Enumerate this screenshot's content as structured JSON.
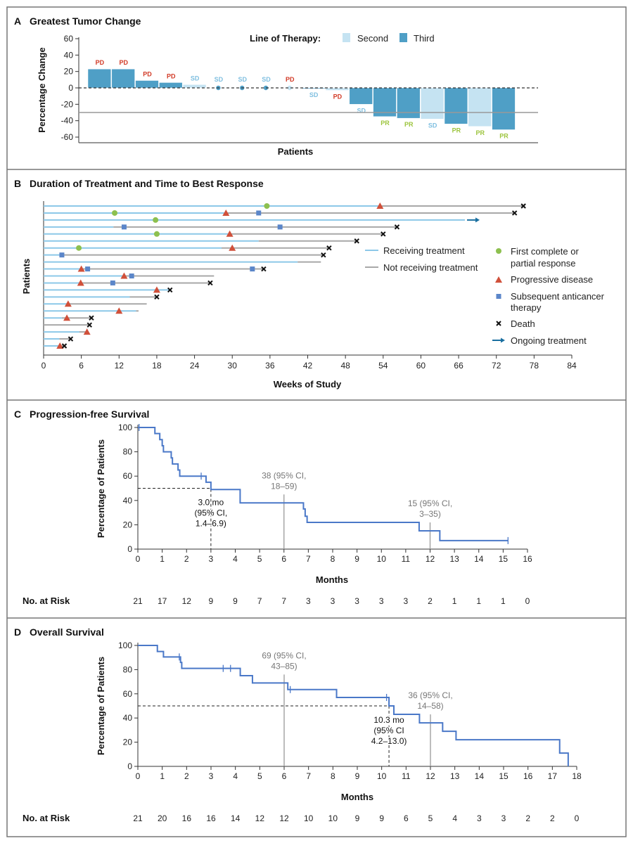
{
  "colors": {
    "third": "#4f9fc6",
    "second": "#c5e3f2",
    "pd": "#d23a26",
    "sd": "#7fbfe0",
    "pr": "#9cc43c",
    "receiving": "#8cc8e8",
    "not_receiving": "#a8a8a8",
    "response": "#8dc04f",
    "progression": "#d0503a",
    "subsequent": "#5b86c9",
    "death": "#111111",
    "ongoing": "#1a6fa0",
    "km": "#4a78c8",
    "ci_line": "#999999"
  },
  "chart_data": [
    {
      "panel": "A",
      "title": "Greatest Tumor Change",
      "type": "bar",
      "ylabel": "Percentage Change",
      "xlabel": "Patients",
      "ylim": [
        -60,
        60
      ],
      "yticks": [
        60,
        40,
        20,
        0,
        -20,
        -40,
        -60
      ],
      "reference_lines": [
        0,
        -30
      ],
      "legend_title": "Line of Therapy:",
      "legend": [
        {
          "name": "Second",
          "key": "second"
        },
        {
          "name": "Third",
          "key": "third"
        }
      ],
      "values": [
        23,
        23,
        9,
        6.5,
        4,
        0,
        0,
        0,
        0,
        -1,
        -3,
        -20,
        -35,
        -37,
        -38,
        -44,
        -47,
        -51
      ],
      "line_of_therapy": [
        "third",
        "third",
        "third",
        "third",
        "second",
        "third",
        "third",
        "third",
        "second",
        "third",
        "second",
        "third",
        "third",
        "third",
        "second",
        "third",
        "second",
        "third"
      ],
      "labels": [
        "PD",
        "PD",
        "PD",
        "PD",
        "SD",
        "SD",
        "SD",
        "SD",
        "PD",
        "SD",
        "PD",
        "SD",
        "PR",
        "PR",
        "SD",
        "PR",
        "PR",
        "PR"
      ]
    },
    {
      "panel": "B",
      "title": "Duration of Treatment and Time to Best Response",
      "type": "swimmer",
      "ylabel": "Patients",
      "xlabel": "Weeks of Study",
      "xlim": [
        0,
        84
      ],
      "xticks": [
        0,
        6,
        12,
        18,
        24,
        30,
        36,
        42,
        48,
        54,
        60,
        66,
        72,
        78,
        84
      ],
      "legend": {
        "receiving": "Receiving treatment",
        "not_receiving": "Not receiving treatment",
        "response": "First complete or partial response",
        "response_lines": [
          "First complete or",
          "partial response"
        ],
        "progression": "Progressive disease",
        "subsequent_lines": [
          "Subsequent anticancer",
          "therapy"
        ],
        "death": "Death",
        "ongoing": "Ongoing treatment"
      },
      "patients": [
        {
          "on_treatment": 53.5,
          "end": 76.3,
          "response": 35.5,
          "progression": 53.5,
          "subsequent": [],
          "death": true
        },
        {
          "on_treatment": 29,
          "end": 74.9,
          "response": 11.3,
          "progression": 29,
          "subsequent": [
            34.2
          ],
          "death": true
        },
        {
          "on_treatment": 67,
          "end": 67,
          "response": 17.8,
          "progression": null,
          "subsequent": [],
          "death": false,
          "ongoing": true
        },
        {
          "on_treatment": 11.1,
          "end": 56.2,
          "response": null,
          "progression": null,
          "subsequent": [
            12.8,
            37.6
          ],
          "death": true
        },
        {
          "on_treatment": 29.6,
          "end": 54,
          "response": 18,
          "progression": 29.6,
          "subsequent": [],
          "death": true
        },
        {
          "on_treatment": 34.2,
          "end": 49.8,
          "response": null,
          "progression": null,
          "subsequent": [],
          "death": true
        },
        {
          "on_treatment": 28.3,
          "end": 45.4,
          "response": 5.6,
          "progression": 30,
          "subsequent": [],
          "death": true
        },
        {
          "on_treatment": 2.9,
          "end": 44.5,
          "response": null,
          "progression": null,
          "subsequent": [
            2.9
          ],
          "death": true
        },
        {
          "on_treatment": 40.4,
          "end": 44.1,
          "response": null,
          "progression": null,
          "subsequent": [],
          "death": false
        },
        {
          "on_treatment": 6,
          "end": 35,
          "response": null,
          "progression": 6,
          "subsequent": [
            7,
            33.2
          ],
          "death": true
        },
        {
          "on_treatment": 12.8,
          "end": 27.1,
          "response": null,
          "progression": 12.8,
          "subsequent": [
            14
          ],
          "death": false
        },
        {
          "on_treatment": 5.9,
          "end": 26.5,
          "response": null,
          "progression": 5.9,
          "subsequent": [
            11
          ],
          "death": true
        },
        {
          "on_treatment": 19.9,
          "end": 20.1,
          "response": null,
          "progression": 18,
          "subsequent": [],
          "death": true
        },
        {
          "on_treatment": 13.7,
          "end": 18,
          "response": null,
          "progression": null,
          "subsequent": [],
          "death": true
        },
        {
          "on_treatment": 3.9,
          "end": 16.4,
          "response": null,
          "progression": 3.9,
          "subsequent": [],
          "death": false
        },
        {
          "on_treatment": 14.7,
          "end": 15.1,
          "response": null,
          "progression": 12,
          "subsequent": [],
          "death": false
        },
        {
          "on_treatment": 2.9,
          "end": 7.6,
          "response": null,
          "progression": 3.7,
          "subsequent": [],
          "death": true
        },
        {
          "on_treatment": 0,
          "end": 7.3,
          "response": null,
          "progression": null,
          "subsequent": [],
          "death": true
        },
        {
          "on_treatment": 5.7,
          "end": 6.9,
          "response": null,
          "progression": 6.9,
          "subsequent": [],
          "death": false
        },
        {
          "on_treatment": 2.5,
          "end": 4.3,
          "response": null,
          "progression": null,
          "subsequent": [],
          "death": true
        },
        {
          "on_treatment": 2.6,
          "end": 3.3,
          "response": null,
          "progression": 2.6,
          "subsequent": [],
          "death": true
        }
      ]
    },
    {
      "panel": "C",
      "title": "Progression-free Survival",
      "type": "line",
      "ylabel": "Percentage of Patients",
      "xlabel": "Months",
      "xlim": [
        0,
        16
      ],
      "ylim": [
        0,
        100
      ],
      "yticks": [
        0,
        20,
        40,
        60,
        80,
        100
      ],
      "steps": [
        [
          0,
          100
        ],
        [
          0.7,
          95
        ],
        [
          0.9,
          90
        ],
        [
          1.0,
          85
        ],
        [
          1.05,
          80
        ],
        [
          1.37,
          75
        ],
        [
          1.42,
          70
        ],
        [
          1.65,
          65
        ],
        [
          1.72,
          60
        ],
        [
          2.8,
          55
        ],
        [
          3.0,
          49
        ],
        [
          4.2,
          38
        ],
        [
          6.8,
          33
        ],
        [
          6.87,
          27
        ],
        [
          6.95,
          22
        ],
        [
          11.55,
          15
        ],
        [
          12.4,
          7
        ]
      ],
      "end": 15.2,
      "censored": [
        0.05,
        2.6,
        15.2
      ],
      "median": {
        "x": 3.0,
        "lines": [
          "3.0 mo",
          "(95% CI,",
          "1.4–6.9)"
        ]
      },
      "landmarks": [
        {
          "x": 6,
          "lines": [
            "38 (95% CI,",
            "18–59)"
          ]
        },
        {
          "x": 12,
          "lines": [
            "15 (95% CI,",
            "3–35)"
          ]
        }
      ],
      "at_risk_label": "No. at Risk",
      "at_risk": [
        21,
        17,
        12,
        9,
        9,
        7,
        7,
        3,
        3,
        3,
        3,
        3,
        2,
        1,
        1,
        1,
        0
      ]
    },
    {
      "panel": "D",
      "title": "Overall Survival",
      "type": "line",
      "ylabel": "Percentage of Patients",
      "xlabel": "Months",
      "xlim": [
        0,
        18
      ],
      "ylim": [
        0,
        100
      ],
      "yticks": [
        0,
        20,
        40,
        60,
        80,
        100
      ],
      "steps": [
        [
          0,
          100
        ],
        [
          0.8,
          95
        ],
        [
          1.05,
          90.5
        ],
        [
          1.75,
          86
        ],
        [
          1.8,
          81
        ],
        [
          4.2,
          75
        ],
        [
          4.7,
          69
        ],
        [
          6.15,
          63.5
        ],
        [
          8.15,
          57
        ],
        [
          10.3,
          50
        ],
        [
          10.5,
          43
        ],
        [
          11.55,
          36
        ],
        [
          12.5,
          29
        ],
        [
          13.05,
          22
        ],
        [
          17.3,
          11
        ],
        [
          17.65,
          0
        ]
      ],
      "end": 17.65,
      "censored": [
        1.7,
        3.5,
        3.8,
        6.25,
        10.2
      ],
      "median": {
        "x": 10.3,
        "lines": [
          "10.3 mo",
          "(95% CI",
          "4.2–13.0)"
        ]
      },
      "landmarks": [
        {
          "x": 6,
          "lines": [
            "69 (95% CI,",
            "43–85)"
          ]
        },
        {
          "x": 12,
          "lines": [
            "36 (95% CI,",
            "14–58)"
          ]
        }
      ],
      "at_risk_label": "No. at Risk",
      "at_risk": [
        21,
        20,
        16,
        16,
        14,
        12,
        12,
        10,
        10,
        9,
        9,
        6,
        5,
        4,
        3,
        3,
        2,
        2,
        0
      ]
    }
  ],
  "panel_letters": [
    "A",
    "B",
    "C",
    "D"
  ]
}
